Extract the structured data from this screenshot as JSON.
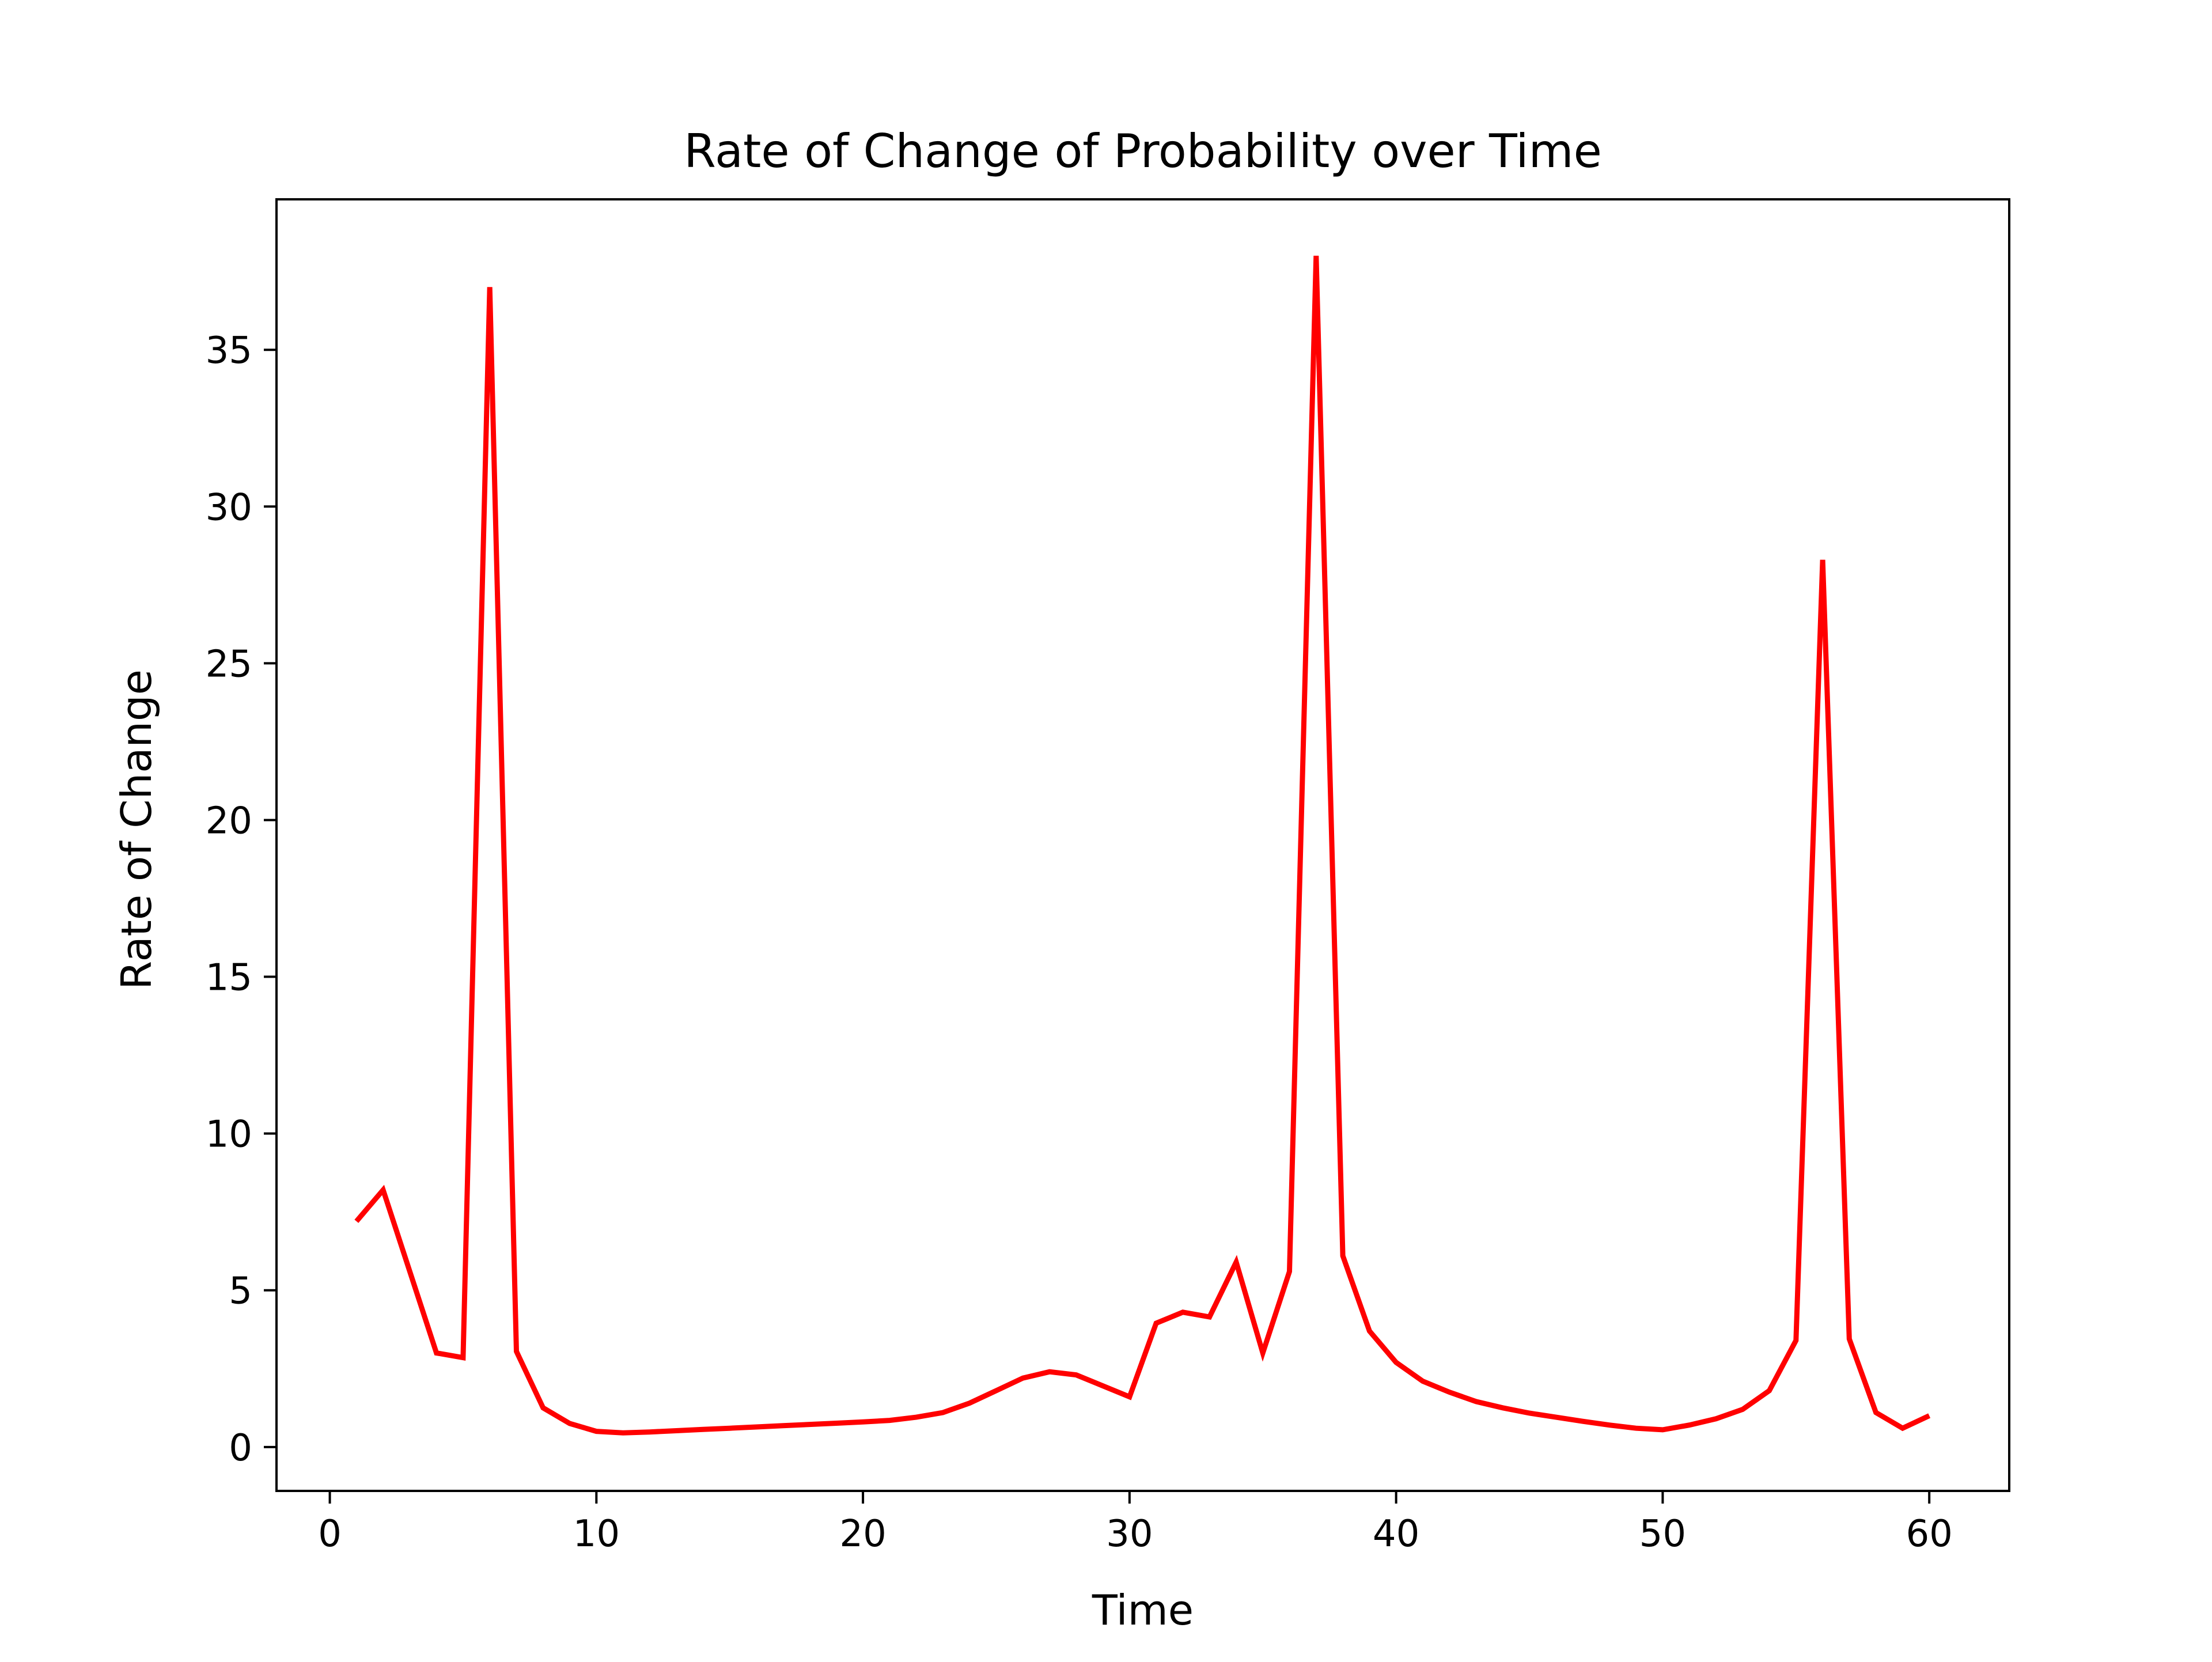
{
  "chart_data": {
    "type": "line",
    "title": "Rate of Change of Probability over Time",
    "xlabel": "Time",
    "ylabel": "Rate of Change",
    "xlim": [
      -2,
      63
    ],
    "ylim": [
      -1.4,
      39.8
    ],
    "xticks": [
      0,
      10,
      20,
      30,
      40,
      50,
      60
    ],
    "yticks": [
      0,
      5,
      10,
      15,
      20,
      25,
      30,
      35
    ],
    "grid": false,
    "legend": "none",
    "series": [
      {
        "color": "#ff0000",
        "x": [
          1,
          2,
          3,
          4,
          5,
          6,
          7,
          8,
          9,
          10,
          11,
          12,
          13,
          14,
          15,
          16,
          17,
          18,
          19,
          20,
          21,
          22,
          23,
          24,
          25,
          26,
          27,
          28,
          29,
          30,
          31,
          32,
          33,
          34,
          35,
          36,
          37,
          38,
          39,
          40,
          41,
          42,
          43,
          44,
          45,
          46,
          47,
          48,
          49,
          50,
          51,
          52,
          53,
          54,
          55,
          56,
          57,
          58,
          59,
          60
        ],
        "y": [
          7.2,
          8.2,
          5.6,
          3.0,
          2.85,
          37.0,
          3.05,
          1.25,
          0.75,
          0.5,
          0.45,
          0.48,
          0.52,
          0.56,
          0.6,
          0.64,
          0.68,
          0.72,
          0.76,
          0.8,
          0.85,
          0.95,
          1.1,
          1.4,
          1.8,
          2.2,
          2.4,
          2.3,
          1.95,
          1.6,
          3.95,
          4.3,
          4.15,
          5.9,
          3.0,
          5.6,
          38.0,
          6.1,
          3.7,
          2.7,
          2.1,
          1.75,
          1.45,
          1.25,
          1.08,
          0.95,
          0.82,
          0.7,
          0.6,
          0.55,
          0.7,
          0.9,
          1.2,
          1.8,
          3.4,
          28.3,
          3.45,
          1.1,
          0.6,
          1.0
        ]
      }
    ]
  }
}
